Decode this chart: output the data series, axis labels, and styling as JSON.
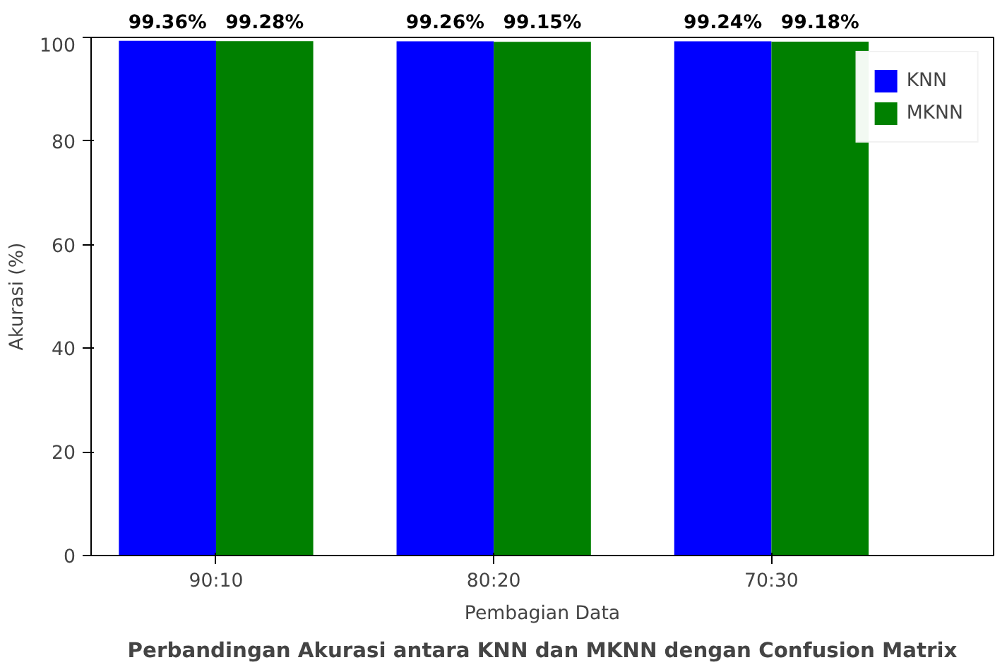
{
  "chart_data": {
    "type": "bar",
    "title": "Perbandingan Akurasi antara KNN dan MKNN dengan Confusion Matrix",
    "xlabel": "Pembagian Data",
    "ylabel": "Akurasi (%)",
    "categories": [
      "90:10",
      "80:20",
      "70:30"
    ],
    "series": [
      {
        "name": "KNN",
        "color": "#0000ff",
        "values": [
          99.36,
          99.26,
          99.24
        ],
        "value_labels": [
          "99.36%",
          "99.26%",
          "99.24%"
        ]
      },
      {
        "name": "MKNN",
        "color": "#008000",
        "values": [
          99.28,
          99.15,
          99.18
        ],
        "value_labels": [
          "99.28%",
          "99.15%",
          "99.18%"
        ]
      }
    ],
    "ylim": [
      0,
      100
    ],
    "yticks": [
      0,
      20,
      40,
      60,
      80,
      100
    ],
    "grid": false,
    "legend": "top right"
  }
}
